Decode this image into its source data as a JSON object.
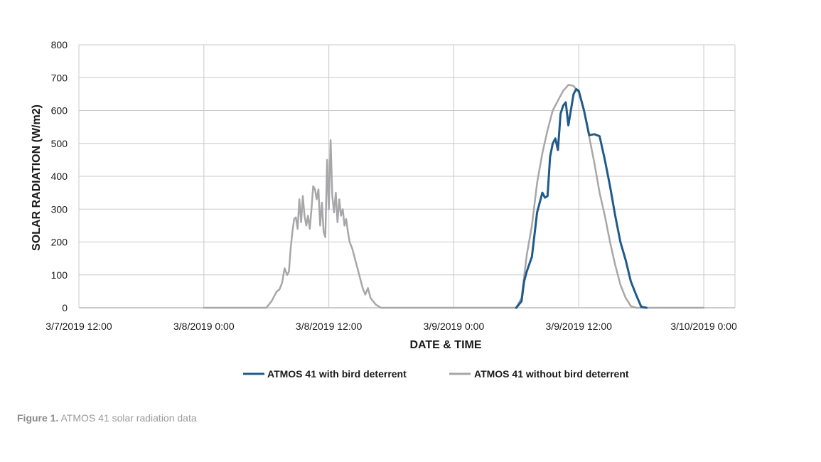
{
  "caption": {
    "label": "Figure 1.",
    "text": " ATMOS 41 solar radiation data"
  },
  "chart_data": {
    "type": "line",
    "title": "",
    "xlabel": "DATE & TIME",
    "ylabel": "SOLAR RADIATION (W/m2)",
    "ylim": [
      0,
      800
    ],
    "yticks": [
      0,
      100,
      200,
      300,
      400,
      500,
      600,
      700,
      800
    ],
    "xlim": [
      "3/7/2019 12:00",
      "3/10/2019 3:00"
    ],
    "xticks": [
      "3/7/2019 12:00",
      "3/8/2019 0:00",
      "3/8/2019 12:00",
      "3/9/2019 0:00",
      "3/9/2019 12:00",
      "3/10/2019 0:00"
    ],
    "grid": true,
    "legend_position": "bottom-center",
    "series": [
      {
        "name": "ATMOS 41 with bird deterrent",
        "color": "#1f5a8a",
        "x": [
          "3/9/2019 6:00",
          "3/9/2019 6:30",
          "3/9/2019 6:45",
          "3/9/2019 7:00",
          "3/9/2019 7:30",
          "3/9/2019 8:00",
          "3/9/2019 8:30",
          "3/9/2019 8:45",
          "3/9/2019 9:00",
          "3/9/2019 9:15",
          "3/9/2019 9:30",
          "3/9/2019 9:45",
          "3/9/2019 10:00",
          "3/9/2019 10:15",
          "3/9/2019 10:30",
          "3/9/2019 10:45",
          "3/9/2019 11:00",
          "3/9/2019 11:30",
          "3/9/2019 11:45",
          "3/9/2019 12:00",
          "3/9/2019 12:30",
          "3/9/2019 13:00",
          "3/9/2019 13:30",
          "3/9/2019 14:00",
          "3/9/2019 14:30",
          "3/9/2019 15:00",
          "3/9/2019 15:30",
          "3/9/2019 16:00",
          "3/9/2019 16:30",
          "3/9/2019 17:00",
          "3/9/2019 17:30",
          "3/9/2019 18:00",
          "3/9/2019 18:30"
        ],
        "values": [
          0,
          20,
          80,
          110,
          155,
          290,
          350,
          335,
          340,
          460,
          500,
          515,
          480,
          590,
          615,
          625,
          555,
          650,
          665,
          660,
          600,
          525,
          528,
          522,
          450,
          370,
          280,
          200,
          145,
          80,
          40,
          3,
          0
        ]
      },
      {
        "name": "ATMOS 41 without bird deterrent",
        "color": "#a7a7a9",
        "x": [
          "3/8/2019 0:00",
          "3/8/2019 6:00",
          "3/8/2019 6:30",
          "3/8/2019 7:00",
          "3/8/2019 7:15",
          "3/8/2019 7:30",
          "3/8/2019 7:45",
          "3/8/2019 8:00",
          "3/8/2019 8:10",
          "3/8/2019 8:20",
          "3/8/2019 8:30",
          "3/8/2019 8:40",
          "3/8/2019 8:50",
          "3/8/2019 9:00",
          "3/8/2019 9:10",
          "3/8/2019 9:20",
          "3/8/2019 9:30",
          "3/8/2019 9:40",
          "3/8/2019 9:50",
          "3/8/2019 10:00",
          "3/8/2019 10:10",
          "3/8/2019 10:20",
          "3/8/2019 10:30",
          "3/8/2019 10:40",
          "3/8/2019 10:50",
          "3/8/2019 11:00",
          "3/8/2019 11:10",
          "3/8/2019 11:20",
          "3/8/2019 11:30",
          "3/8/2019 11:40",
          "3/8/2019 11:50",
          "3/8/2019 12:00",
          "3/8/2019 12:10",
          "3/8/2019 12:20",
          "3/8/2019 12:30",
          "3/8/2019 12:40",
          "3/8/2019 12:50",
          "3/8/2019 13:00",
          "3/8/2019 13:10",
          "3/8/2019 13:20",
          "3/8/2019 13:30",
          "3/8/2019 13:40",
          "3/8/2019 13:50",
          "3/8/2019 14:00",
          "3/8/2019 14:15",
          "3/8/2019 14:30",
          "3/8/2019 14:45",
          "3/8/2019 15:00",
          "3/8/2019 15:15",
          "3/8/2019 15:30",
          "3/8/2019 15:45",
          "3/8/2019 16:00",
          "3/8/2019 16:15",
          "3/8/2019 16:30",
          "3/8/2019 16:45",
          "3/8/2019 17:00",
          "3/8/2019 17:15",
          "3/8/2019 17:30",
          "3/8/2019 17:45",
          "3/8/2019 18:00",
          "3/8/2019 18:30",
          "3/8/2019 19:00",
          "3/8/2019 20:00",
          "3/9/2019 6:00",
          "3/9/2019 6:30",
          "3/9/2019 7:00",
          "3/9/2019 7:30",
          "3/9/2019 8:00",
          "3/9/2019 8:30",
          "3/9/2019 9:00",
          "3/9/2019 9:30",
          "3/9/2019 10:00",
          "3/9/2019 10:30",
          "3/9/2019 11:00",
          "3/9/2019 11:30",
          "3/9/2019 12:00",
          "3/9/2019 12:30",
          "3/9/2019 13:00",
          "3/9/2019 13:30",
          "3/9/2019 14:00",
          "3/9/2019 14:30",
          "3/9/2019 15:00",
          "3/9/2019 15:30",
          "3/9/2019 16:00",
          "3/9/2019 16:30",
          "3/9/2019 17:00",
          "3/9/2019 17:30",
          "3/9/2019 18:00",
          "3/9/2019 18:30",
          "3/10/2019 0:00"
        ],
        "values": [
          0,
          0,
          20,
          50,
          55,
          75,
          120,
          100,
          110,
          180,
          230,
          270,
          275,
          240,
          330,
          260,
          340,
          280,
          250,
          280,
          240,
          300,
          370,
          360,
          330,
          360,
          250,
          320,
          230,
          215,
          450,
          300,
          510,
          340,
          290,
          350,
          260,
          330,
          280,
          300,
          250,
          270,
          230,
          200,
          180,
          150,
          120,
          90,
          60,
          40,
          60,
          30,
          20,
          10,
          5,
          0,
          0,
          0,
          0,
          0,
          0,
          0,
          0,
          0,
          30,
          160,
          250,
          380,
          470,
          540,
          600,
          630,
          660,
          678,
          675,
          655,
          600,
          520,
          440,
          350,
          280,
          200,
          130,
          70,
          30,
          5,
          0,
          0,
          0,
          0
        ]
      }
    ]
  }
}
